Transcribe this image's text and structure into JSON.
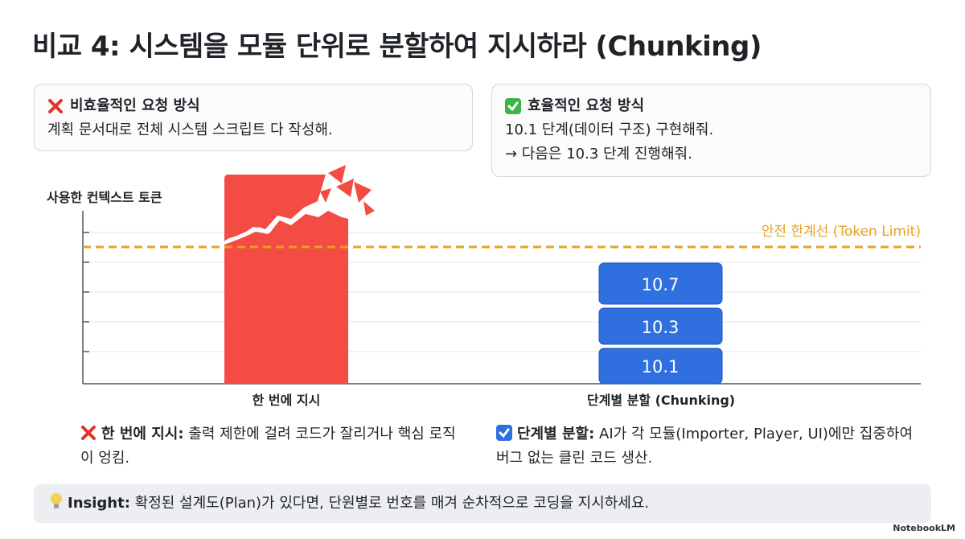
{
  "title": "비교 4: 시스템을 모듈 단위로 분할하여 지시하라 (Chunking)",
  "bad_request": {
    "heading": "비효율적인 요청 방식",
    "text": "계획 문서대로 전체 시스템 스크립트 다 작성해."
  },
  "good_request": {
    "heading": "효율적인 요청 방식",
    "lines": [
      "10.1 단계(데이터 구조) 구현해줘.",
      "→ 다음은 10.3 단계 진행해줘."
    ]
  },
  "diagram": {
    "y_label": "사용한 컨텍스트 토큰",
    "limit_label": "안전 한계선 (Token Limit)",
    "bars": [
      {
        "label": "한 번에 지시"
      },
      {
        "label": "단계별 분할 (Chunking)",
        "chunks": [
          "10.7",
          "10.3",
          "10.1"
        ]
      }
    ]
  },
  "notes": [
    {
      "heading": "한 번에 지시:",
      "text": "출력 제한에 걸려 코드가 잘리거나 핵심 로직이 엉킴."
    },
    {
      "heading": "단계별 분할:",
      "text": "AI가 각 모듈(Importer, Player, UI)에만 집중하여 버그 없는 클린 코드 생산."
    }
  ],
  "insight": {
    "heading": "Insight:",
    "text": "확정된 설계도(Plan)가 있다면, 단원별로 번호를 매겨 순차적으로 코딩을 지시하세요."
  },
  "brand": "NotebookLM"
}
